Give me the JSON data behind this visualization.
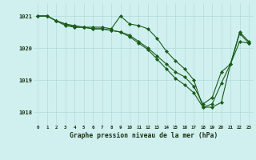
{
  "title": "Graphe pression niveau de la mer (hPa)",
  "background_color": "#d0f0f0",
  "grid_color": "#b8dede",
  "line_color": "#1a5c1a",
  "xlim": [
    -0.5,
    23.5
  ],
  "ylim": [
    1017.6,
    1021.4
  ],
  "yticks": [
    1018,
    1019,
    1020,
    1021
  ],
  "xticks": [
    0,
    1,
    2,
    3,
    4,
    5,
    6,
    7,
    8,
    9,
    10,
    11,
    12,
    13,
    14,
    15,
    16,
    17,
    18,
    19,
    20,
    21,
    22,
    23
  ],
  "series": [
    [
      1021.0,
      1021.0,
      1020.85,
      1020.75,
      1020.7,
      1020.65,
      1020.65,
      1020.65,
      1020.6,
      1021.0,
      1020.75,
      1020.7,
      1020.6,
      1020.3,
      1019.9,
      1019.6,
      1019.35,
      1019.0,
      1018.15,
      1018.15,
      1018.3,
      1019.5,
      1020.2,
      1020.15
    ],
    [
      1021.0,
      1021.0,
      1020.85,
      1020.7,
      1020.65,
      1020.65,
      1020.6,
      1020.6,
      1020.55,
      1020.5,
      1020.35,
      1020.15,
      1019.95,
      1019.65,
      1019.35,
      1019.05,
      1018.85,
      1018.6,
      1018.15,
      1018.25,
      1018.9,
      1019.5,
      1020.5,
      1020.2
    ],
    [
      1021.0,
      1021.0,
      1020.85,
      1020.75,
      1020.65,
      1020.65,
      1020.6,
      1020.6,
      1020.55,
      1020.5,
      1020.4,
      1020.2,
      1020.0,
      1019.75,
      1019.5,
      1019.25,
      1019.1,
      1018.8,
      1018.25,
      1018.45,
      1019.25,
      1019.5,
      1020.45,
      1020.15
    ]
  ]
}
